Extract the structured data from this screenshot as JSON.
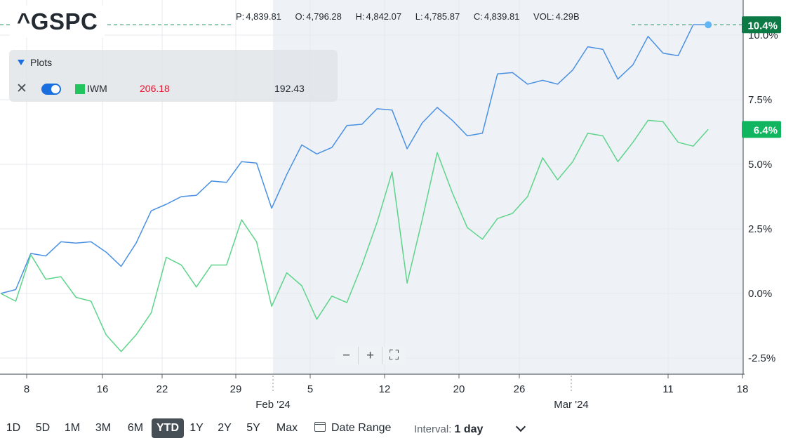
{
  "symbol": "^GSPC",
  "ohlc": {
    "p_label": "P:",
    "p": "4,839.81",
    "o_label": "O:",
    "o": "4,796.28",
    "h_label": "H:",
    "h": "4,842.07",
    "l_label": "L:",
    "l": "4,785.87",
    "c_label": "C:",
    "c": "4,839.81",
    "vol_label": "VOL:",
    "vol": "4.29B"
  },
  "plots_panel": {
    "title": "Plots",
    "comparison": {
      "symbol": "IWM",
      "change": "206.18",
      "price": "192.43",
      "color": "#21c45d",
      "enabled": true
    }
  },
  "zoom_controls": {
    "minus": "−",
    "plus": "+",
    "fullscreen": "⛶"
  },
  "ranges": {
    "items": [
      "1D",
      "5D",
      "1M",
      "3M",
      "6M",
      "YTD",
      "1Y",
      "2Y",
      "5Y",
      "Max"
    ],
    "active": "YTD"
  },
  "date_range_label": "Date Range",
  "interval": {
    "label": "Interval:",
    "value": "1 day"
  },
  "chart_data": {
    "type": "line",
    "x_labels": [
      "8",
      "16",
      "22",
      "29",
      "Feb '24",
      "5",
      "12",
      "20",
      "26",
      "Mar '24",
      "11",
      "18"
    ],
    "ylim": [
      -3.5,
      12.5
    ],
    "y_ticks": [
      "10.0%",
      "7.5%",
      "5.0%",
      "2.5%",
      "0.0%",
      "-2.5%"
    ],
    "grid": true,
    "series": [
      {
        "name": "^GSPC",
        "color": "#4a90e2",
        "last_label": "10.4%",
        "values": [
          0.0,
          0.15,
          1.55,
          1.45,
          2.0,
          1.95,
          2.0,
          1.6,
          1.05,
          1.95,
          3.2,
          3.45,
          3.75,
          3.8,
          4.35,
          4.3,
          5.1,
          5.05,
          3.3,
          4.6,
          5.75,
          5.4,
          5.65,
          6.5,
          6.55,
          7.15,
          7.1,
          5.6,
          6.6,
          7.2,
          6.7,
          6.1,
          6.2,
          8.5,
          8.55,
          8.1,
          8.25,
          8.1,
          8.65,
          9.55,
          9.45,
          8.3,
          8.85,
          9.95,
          9.3,
          9.2,
          10.4,
          10.4
        ]
      },
      {
        "name": "IWM",
        "color": "#5dd48a",
        "last_label": "6.4%",
        "values": [
          0.0,
          -0.3,
          1.5,
          0.55,
          0.65,
          -0.15,
          -0.3,
          -1.6,
          -2.25,
          -1.6,
          -0.75,
          1.4,
          1.1,
          0.25,
          1.1,
          1.1,
          2.85,
          2.0,
          -0.5,
          0.8,
          0.3,
          -1.0,
          -0.1,
          -0.35,
          1.1,
          2.75,
          4.7,
          0.4,
          2.85,
          5.45,
          3.9,
          2.55,
          2.1,
          2.9,
          3.1,
          3.75,
          5.25,
          4.4,
          5.1,
          6.2,
          6.1,
          5.1,
          5.85,
          6.7,
          6.65,
          5.85,
          5.7,
          6.35
        ]
      }
    ]
  }
}
